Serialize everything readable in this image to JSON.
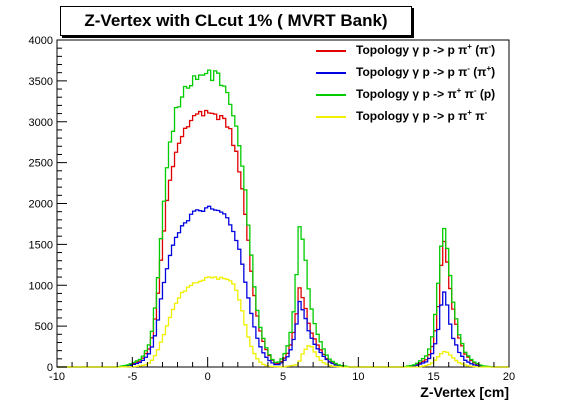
{
  "title": "Z-Vertex with CLcut 1% ( MVRT Bank)",
  "legend": [
    {
      "text": "Topology γ p -> p π",
      "sup1": "+",
      "mid": " (π",
      "sup2": "-",
      "end": ")",
      "color": "#e00000"
    },
    {
      "text": "Topology γ p -> p π",
      "sup1": "-",
      "mid": " (π",
      "sup2": "+",
      "end": ")",
      "color": "#0000e0"
    },
    {
      "text": "Topology γ p -> π",
      "sup1": "+",
      "mid": " π",
      "sup2": "-",
      "end": " (p)",
      "color": "#00cc00"
    },
    {
      "text": "Topology γ p -> p π",
      "sup1": "+",
      "mid": " π",
      "sup2": "-",
      "end": "",
      "color": "#f0f000"
    }
  ],
  "chart_data": {
    "type": "histogram",
    "xlabel": "Z-Vertex [cm]",
    "ylabel": "",
    "xlim": [
      -10,
      20
    ],
    "ylim": [
      0,
      4000
    ],
    "xticks": [
      -10,
      -5,
      0,
      5,
      10,
      15,
      20
    ],
    "yticks": [
      0,
      500,
      1000,
      1500,
      2000,
      2500,
      3000,
      3500,
      4000
    ],
    "series": [
      {
        "name": "Topology γ p -> p π+ (π-)",
        "color": "#e00000",
        "points": [
          [
            -10,
            0
          ],
          [
            -6,
            0
          ],
          [
            -5.2,
            20
          ],
          [
            -4.4,
            80
          ],
          [
            -3.8,
            250
          ],
          [
            -3.4,
            700
          ],
          [
            -3.0,
            1500
          ],
          [
            -2.6,
            2200
          ],
          [
            -2.2,
            2600
          ],
          [
            -1.8,
            2800
          ],
          [
            -1.4,
            2950
          ],
          [
            -1.0,
            3000
          ],
          [
            -0.6,
            3080
          ],
          [
            -0.2,
            3100
          ],
          [
            0.2,
            3080
          ],
          [
            0.6,
            3050
          ],
          [
            1.0,
            3020
          ],
          [
            1.4,
            2950
          ],
          [
            1.8,
            2700
          ],
          [
            2.2,
            2300
          ],
          [
            2.6,
            1700
          ],
          [
            3.0,
            1000
          ],
          [
            3.4,
            500
          ],
          [
            3.8,
            250
          ],
          [
            4.2,
            100
          ],
          [
            4.6,
            30
          ],
          [
            5.0,
            80
          ],
          [
            5.4,
            200
          ],
          [
            5.8,
            500
          ],
          [
            6.1,
            950
          ],
          [
            6.4,
            800
          ],
          [
            6.8,
            450
          ],
          [
            7.2,
            300
          ],
          [
            7.6,
            180
          ],
          [
            8.0,
            80
          ],
          [
            8.6,
            20
          ],
          [
            9.4,
            0
          ],
          [
            13.0,
            0
          ],
          [
            13.8,
            20
          ],
          [
            14.6,
            100
          ],
          [
            15.0,
            300
          ],
          [
            15.4,
            900
          ],
          [
            15.6,
            1600
          ],
          [
            15.8,
            1500
          ],
          [
            16.0,
            1100
          ],
          [
            16.3,
            700
          ],
          [
            16.7,
            350
          ],
          [
            17.1,
            160
          ],
          [
            17.6,
            60
          ],
          [
            18.2,
            10
          ],
          [
            19,
            0
          ],
          [
            20,
            0
          ]
        ]
      },
      {
        "name": "Topology γ p -> p π- (π+)",
        "color": "#0000e0",
        "points": [
          [
            -10,
            0
          ],
          [
            -6,
            0
          ],
          [
            -5.2,
            15
          ],
          [
            -4.4,
            60
          ],
          [
            -3.8,
            180
          ],
          [
            -3.4,
            450
          ],
          [
            -3.0,
            950
          ],
          [
            -2.6,
            1300
          ],
          [
            -2.2,
            1550
          ],
          [
            -1.8,
            1700
          ],
          [
            -1.4,
            1800
          ],
          [
            -1.0,
            1870
          ],
          [
            -0.6,
            1920
          ],
          [
            -0.2,
            1950
          ],
          [
            0.2,
            1940
          ],
          [
            0.6,
            1920
          ],
          [
            1.0,
            1900
          ],
          [
            1.4,
            1800
          ],
          [
            1.8,
            1600
          ],
          [
            2.2,
            1350
          ],
          [
            2.6,
            950
          ],
          [
            3.0,
            550
          ],
          [
            3.4,
            280
          ],
          [
            3.8,
            140
          ],
          [
            4.2,
            60
          ],
          [
            4.6,
            20
          ],
          [
            5.0,
            60
          ],
          [
            5.4,
            150
          ],
          [
            5.8,
            400
          ],
          [
            6.1,
            800
          ],
          [
            6.4,
            650
          ],
          [
            6.8,
            380
          ],
          [
            7.2,
            250
          ],
          [
            7.6,
            150
          ],
          [
            8.0,
            70
          ],
          [
            8.6,
            15
          ],
          [
            9.4,
            0
          ],
          [
            13.0,
            0
          ],
          [
            13.8,
            15
          ],
          [
            14.6,
            70
          ],
          [
            15.0,
            200
          ],
          [
            15.4,
            550
          ],
          [
            15.6,
            950
          ],
          [
            15.8,
            900
          ],
          [
            16.0,
            600
          ],
          [
            16.3,
            350
          ],
          [
            16.7,
            180
          ],
          [
            17.1,
            80
          ],
          [
            17.6,
            30
          ],
          [
            18.2,
            5
          ],
          [
            19,
            0
          ],
          [
            20,
            0
          ]
        ]
      },
      {
        "name": "Topology γ p -> π+ π- (p)",
        "color": "#00cc00",
        "points": [
          [
            -10,
            0
          ],
          [
            -6,
            0
          ],
          [
            -5.2,
            30
          ],
          [
            -4.4,
            100
          ],
          [
            -3.8,
            300
          ],
          [
            -3.4,
            850
          ],
          [
            -3.0,
            1800
          ],
          [
            -2.6,
            2600
          ],
          [
            -2.2,
            3050
          ],
          [
            -1.8,
            3300
          ],
          [
            -1.4,
            3450
          ],
          [
            -1.0,
            3520
          ],
          [
            -0.6,
            3560
          ],
          [
            -0.2,
            3600
          ],
          [
            0.2,
            3580
          ],
          [
            0.6,
            3550
          ],
          [
            1.0,
            3450
          ],
          [
            1.4,
            3250
          ],
          [
            1.8,
            3000
          ],
          [
            2.2,
            2650
          ],
          [
            2.6,
            1950
          ],
          [
            3.0,
            1150
          ],
          [
            3.4,
            550
          ],
          [
            3.8,
            280
          ],
          [
            4.2,
            110
          ],
          [
            4.6,
            40
          ],
          [
            5.0,
            120
          ],
          [
            5.4,
            300
          ],
          [
            5.8,
            800
          ],
          [
            6.1,
            1750
          ],
          [
            6.4,
            1450
          ],
          [
            6.8,
            800
          ],
          [
            7.2,
            450
          ],
          [
            7.6,
            260
          ],
          [
            8.0,
            110
          ],
          [
            8.6,
            30
          ],
          [
            9.4,
            0
          ],
          [
            13.0,
            0
          ],
          [
            13.8,
            30
          ],
          [
            14.6,
            150
          ],
          [
            15.0,
            450
          ],
          [
            15.4,
            1200
          ],
          [
            15.6,
            1750
          ],
          [
            15.8,
            1650
          ],
          [
            16.0,
            1250
          ],
          [
            16.3,
            800
          ],
          [
            16.7,
            400
          ],
          [
            17.1,
            180
          ],
          [
            17.6,
            70
          ],
          [
            18.2,
            15
          ],
          [
            19,
            0
          ],
          [
            20,
            0
          ]
        ]
      },
      {
        "name": "Topology γ p -> p π+ π-",
        "color": "#f0f000",
        "points": [
          [
            -10,
            0
          ],
          [
            -6,
            0
          ],
          [
            -4.8,
            5
          ],
          [
            -4.0,
            30
          ],
          [
            -3.6,
            100
          ],
          [
            -3.2,
            250
          ],
          [
            -2.8,
            450
          ],
          [
            -2.4,
            650
          ],
          [
            -2.0,
            820
          ],
          [
            -1.6,
            920
          ],
          [
            -1.2,
            980
          ],
          [
            -0.8,
            1020
          ],
          [
            -0.4,
            1060
          ],
          [
            0,
            1080
          ],
          [
            0.4,
            1100
          ],
          [
            0.8,
            1090
          ],
          [
            1.2,
            1080
          ],
          [
            1.6,
            1050
          ],
          [
            2.0,
            900
          ],
          [
            2.4,
            600
          ],
          [
            2.8,
            300
          ],
          [
            3.2,
            120
          ],
          [
            3.6,
            40
          ],
          [
            4.0,
            10
          ],
          [
            5.0,
            0
          ],
          [
            6.0,
            30
          ],
          [
            6.4,
            200
          ],
          [
            6.8,
            280
          ],
          [
            7.2,
            150
          ],
          [
            7.6,
            60
          ],
          [
            8.2,
            10
          ],
          [
            9.0,
            0
          ],
          [
            14.0,
            0
          ],
          [
            14.6,
            20
          ],
          [
            15.0,
            60
          ],
          [
            15.4,
            150
          ],
          [
            15.8,
            200
          ],
          [
            16.2,
            130
          ],
          [
            16.6,
            60
          ],
          [
            17.2,
            15
          ],
          [
            18,
            0
          ],
          [
            20,
            0
          ]
        ]
      }
    ]
  }
}
